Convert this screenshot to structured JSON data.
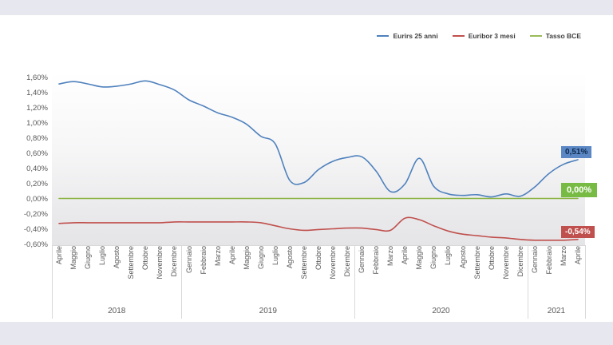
{
  "page": {
    "background_color": "#ffffff",
    "band_color": "#e7e7f0"
  },
  "chart_data": {
    "type": "line",
    "title": "",
    "xlabel": "",
    "ylabel": "",
    "ylim": [
      -0.6,
      1.6
    ],
    "grid": false,
    "legend_position": "top-right",
    "y_ticks": [
      "1,60%",
      "1,40%",
      "1,20%",
      "1,00%",
      "0,80%",
      "0,60%",
      "0,40%",
      "0,20%",
      "0,00%",
      "-0,20%",
      "-0,40%",
      "-0,60%"
    ],
    "x_groups": [
      {
        "year": "2018",
        "months": [
          "Aprile",
          "Maggio",
          "Giugno",
          "Luglio",
          "Agosto",
          "Settembre",
          "Ottobre",
          "Novembre",
          "Dicembre"
        ]
      },
      {
        "year": "2019",
        "months": [
          "Gennaio",
          "Febbraio",
          "Marzo",
          "Aprile",
          "Maggio",
          "Giugno",
          "Luglio",
          "Agosto",
          "Settembre",
          "Ottobre",
          "Novembre",
          "Dicembre"
        ]
      },
      {
        "year": "2020",
        "months": [
          "Gennaio",
          "Febbraio",
          "Marzo",
          "Aprile",
          "Maggio",
          "Giugno",
          "Luglio",
          "Agosto",
          "Settembre",
          "Ottobre",
          "Novembre",
          "Dicembre"
        ]
      },
      {
        "year": "2021",
        "months": [
          "Gennaio",
          "Febbraio",
          "Marzo",
          "Aprile"
        ]
      }
    ],
    "series": [
      {
        "name": "Eurirs 25 anni",
        "color": "#4f81bd",
        "line_color": "#4f81bd",
        "values": [
          1.51,
          1.54,
          1.51,
          1.47,
          1.48,
          1.51,
          1.55,
          1.5,
          1.43,
          1.3,
          1.22,
          1.13,
          1.07,
          0.98,
          0.82,
          0.72,
          0.24,
          0.21,
          0.38,
          0.49,
          0.54,
          0.55,
          0.36,
          0.09,
          0.19,
          0.53,
          0.16,
          0.06,
          0.04,
          0.05,
          0.02,
          0.06,
          0.03,
          0.15,
          0.33,
          0.45,
          0.51
        ]
      },
      {
        "name": "Euribor 3 mesi",
        "color": "#c0504d",
        "line_color": "#c0504d",
        "values": [
          -0.33,
          -0.32,
          -0.32,
          -0.32,
          -0.32,
          -0.32,
          -0.32,
          -0.32,
          -0.31,
          -0.31,
          -0.31,
          -0.31,
          -0.31,
          -0.31,
          -0.32,
          -0.36,
          -0.4,
          -0.42,
          -0.41,
          -0.4,
          -0.39,
          -0.39,
          -0.41,
          -0.42,
          -0.26,
          -0.28,
          -0.36,
          -0.43,
          -0.47,
          -0.49,
          -0.51,
          -0.52,
          -0.54,
          -0.55,
          -0.55,
          -0.55,
          -0.54
        ]
      },
      {
        "name": "Tasso BCE",
        "color": "#9bbb59",
        "line_color": "#89b33f",
        "values": [
          0,
          0,
          0,
          0,
          0,
          0,
          0,
          0,
          0,
          0,
          0,
          0,
          0,
          0,
          0,
          0,
          0,
          0,
          0,
          0,
          0,
          0,
          0,
          0,
          0,
          0,
          0,
          0,
          0,
          0,
          0,
          0,
          0,
          0,
          0,
          0,
          0
        ]
      }
    ],
    "end_labels": [
      {
        "text": "0,51%",
        "bg": "#5b88c4",
        "fg": "#0d2a4d",
        "size": "small",
        "value": 0.51
      },
      {
        "text": "0,00%",
        "bg": "#77bb44",
        "fg": "#ffffff",
        "size": "big",
        "value": 0.0
      },
      {
        "text": "-0,54%",
        "bg": "#c0504d",
        "fg": "#ffffff",
        "size": "small",
        "value": -0.54
      }
    ]
  }
}
